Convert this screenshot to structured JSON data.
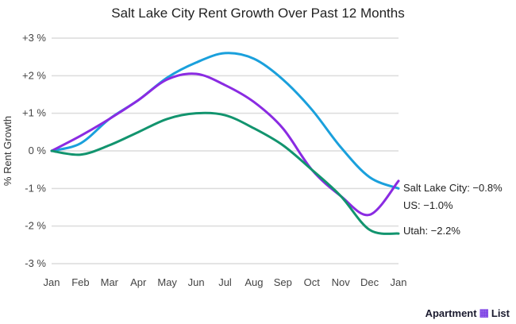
{
  "chart_data": {
    "type": "line",
    "title": "Salt Lake City Rent Growth Over Past 12 Months",
    "ylabel": "% Rent Growth",
    "xlabel": "",
    "categories": [
      "Jan",
      "Feb",
      "Mar",
      "Apr",
      "May",
      "Jun",
      "Jul",
      "Aug",
      "Sep",
      "Oct",
      "Nov",
      "Dec",
      "Jan"
    ],
    "ylim": [
      -3,
      3
    ],
    "yticks": [
      3,
      2,
      1,
      0,
      -1,
      -2,
      -3
    ],
    "ytick_labels": [
      "+3 %",
      "+2 %",
      "+1 %",
      "0 %",
      "-1 %",
      "-2 %",
      "-3 %"
    ],
    "grid": true,
    "series": [
      {
        "color": "#1aa0dc",
        "values": [
          0,
          0.2,
          0.85,
          1.35,
          1.95,
          2.35,
          2.6,
          2.45,
          1.9,
          1.1,
          0.1,
          -0.7,
          -1.0
        ]
      },
      {
        "color": "#8a2be2",
        "values": [
          0,
          0.4,
          0.85,
          1.35,
          1.9,
          2.05,
          1.75,
          1.3,
          0.6,
          -0.5,
          -1.2,
          -1.7,
          -0.8
        ]
      },
      {
        "color": "#12946e",
        "values": [
          0,
          -0.1,
          0.15,
          0.5,
          0.85,
          1.0,
          0.95,
          0.6,
          0.15,
          -0.5,
          -1.2,
          -2.1,
          -2.2
        ]
      }
    ],
    "annotations": [
      "Salt Lake City: −0.8%",
      "US: −1.0%",
      "Utah: −2.2%"
    ]
  },
  "branding": {
    "logo_text_1": "Apartment",
    "logo_text_2": "List"
  }
}
